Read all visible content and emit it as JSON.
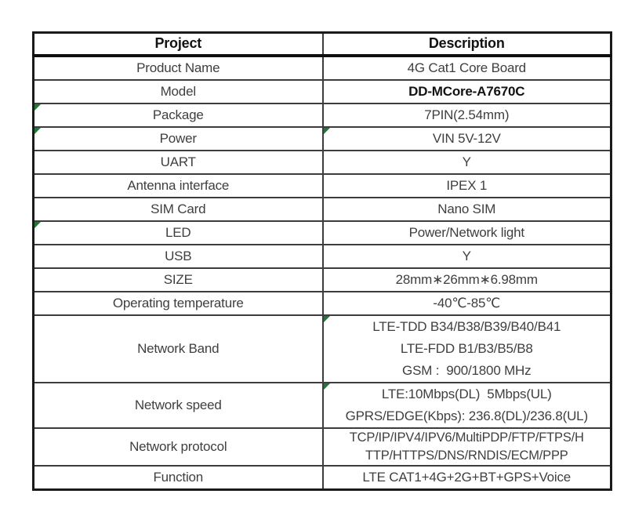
{
  "page": {
    "background": "#ffffff"
  },
  "colors": {
    "flag_green": "#1e7a35",
    "outer_border": "#1a1a1a",
    "inner_border": "#3d3d3d",
    "body_text": "#3f3f3f",
    "heading_text": "#121212"
  },
  "spec_table": {
    "column_headers": {
      "project": "Project",
      "description": "Description"
    },
    "rows": [
      {
        "project": "Product Name",
        "description_lines": [
          "4G Cat1 Core Board"
        ]
      },
      {
        "project": "Model",
        "description_lines": [
          "DD-MCore-A7670C"
        ],
        "description_bold": true
      },
      {
        "project": "Package",
        "description_lines": [
          "7PIN(2.54mm)"
        ],
        "flag_project": true
      },
      {
        "project": "Power",
        "description_lines": [
          "VIN 5V-12V"
        ],
        "flag_project": true,
        "flag_description": true
      },
      {
        "project": "UART",
        "description_lines": [
          "Y"
        ]
      },
      {
        "project": "Antenna interface",
        "description_lines": [
          "IPEX 1"
        ]
      },
      {
        "project": "SIM Card",
        "description_lines": [
          "Nano SIM"
        ]
      },
      {
        "project": "LED",
        "description_lines": [
          "Power/Network light"
        ],
        "flag_project": true
      },
      {
        "project": "USB",
        "description_lines": [
          "Y"
        ]
      },
      {
        "project": "SIZE",
        "description_lines": [
          "28mm∗26mm∗6.98mm"
        ]
      },
      {
        "project": "Operating temperature",
        "description_lines": [
          "-40℃-85℃"
        ]
      },
      {
        "project": "Network Band",
        "description_lines": [
          "LTE-TDD B34/B38/B39/B40/B41",
          "LTE-FDD B1/B3/B5/B8",
          "GSM :  900/1800 MHz"
        ],
        "flag_description": true
      },
      {
        "project": "Network speed",
        "description_lines": [
          "LTE:10Mbps(DL)  5Mbps(UL)",
          "GPRS/EDGE(Kbps): 236.8(DL)/236.8(UL)"
        ],
        "flag_description": true
      },
      {
        "project": "Network protocol",
        "description_lines": [
          "TCP/IP/IPV4/IPV6/MultiPDP/FTP/FTPS/H",
          "TTP/HTTPS/DNS/RNDIS/ECM/PPP"
        ]
      },
      {
        "project": "Function",
        "description_lines": [
          "LTE CAT1+4G+2G+BT+GPS+Voice"
        ]
      }
    ]
  }
}
